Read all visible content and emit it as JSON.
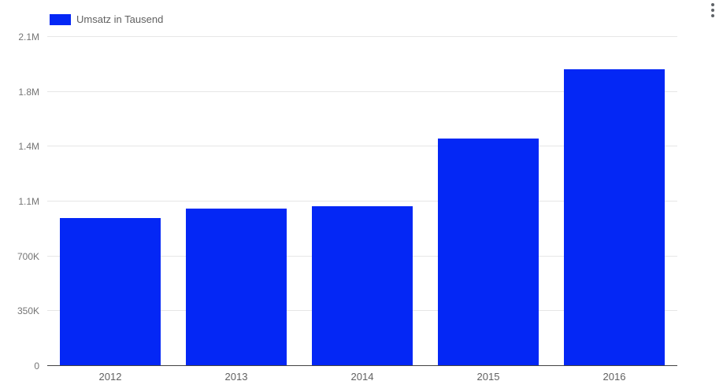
{
  "chart_data": {
    "type": "bar",
    "title": "",
    "categories": [
      "2012",
      "2013",
      "2014",
      "2015",
      "2016"
    ],
    "series": [
      {
        "name": "Umsatz in Tausend",
        "values": [
          945000,
          1005000,
          1020000,
          1450000,
          1895000
        ]
      }
    ],
    "ylim": [
      0,
      2100000
    ],
    "ytick_interval": 350000,
    "ytick_labels_bottom_to_top": [
      "0",
      "350K",
      "700K",
      "1.1M",
      "1.4M",
      "1.8M",
      "2.1M"
    ],
    "xlabel": "",
    "ylabel": "",
    "grid": true,
    "legend_position": "top-left",
    "bar_color": "#0427f5",
    "bar_width_pct": 16
  },
  "legend": {
    "label": "Umsatz in Tausend"
  },
  "icons": {
    "kebab_menu": "⋮"
  },
  "colors": {
    "bar": "#0427f5",
    "gridline": "#e6e6e6",
    "baseline": "#424242",
    "y_tick_text": "#757575",
    "x_tick_text": "#616161",
    "legend_text": "#616161",
    "menu_icon": "#5f6368",
    "background": "#ffffff"
  }
}
